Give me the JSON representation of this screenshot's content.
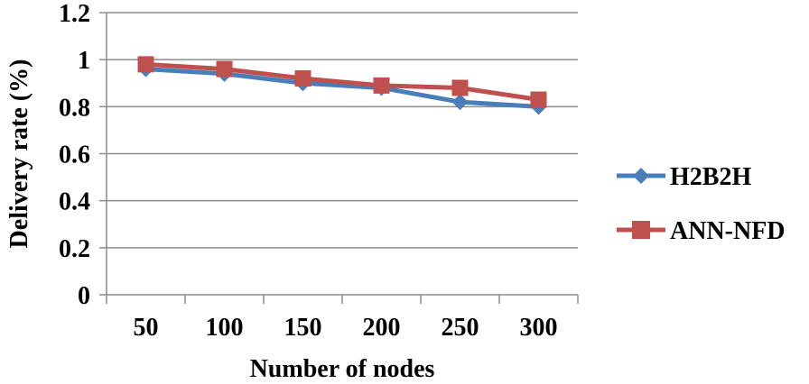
{
  "chart_data": {
    "type": "line",
    "xlabel": "Number of nodes",
    "ylabel": "Delivery rate (%)",
    "categories": [
      "50",
      "100",
      "150",
      "200",
      "250",
      "300"
    ],
    "ylim": [
      0,
      1.2
    ],
    "yticks": [
      "0",
      "0.2",
      "0.4",
      "0.6",
      "0.8",
      "1",
      "1.2"
    ],
    "grid": "horizontal",
    "legend_position": "right",
    "series": [
      {
        "name": "H2B2H",
        "color": "#4a7ebb",
        "marker": "diamond",
        "values": [
          0.96,
          0.94,
          0.9,
          0.88,
          0.82,
          0.8
        ]
      },
      {
        "name": "ANN-NFD",
        "color": "#c0504d",
        "marker": "square",
        "values": [
          0.98,
          0.96,
          0.92,
          0.89,
          0.88,
          0.83
        ]
      }
    ]
  }
}
